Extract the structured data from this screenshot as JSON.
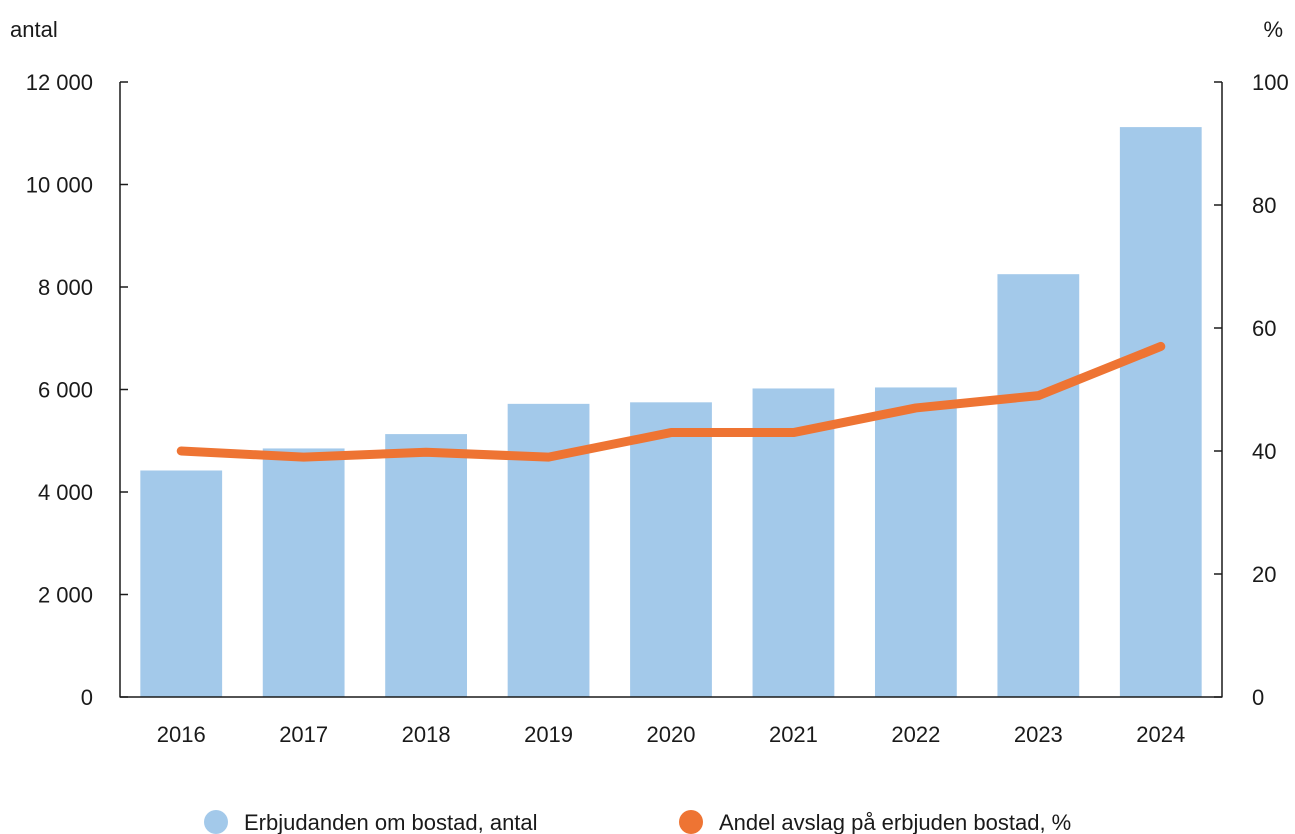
{
  "chart_data": {
    "type": "bar+line",
    "categories": [
      "2016",
      "2017",
      "2018",
      "2019",
      "2020",
      "2021",
      "2022",
      "2023",
      "2024"
    ],
    "series": [
      {
        "name": "Erbjudanden om bostad, antal",
        "type": "bar",
        "axis": "left",
        "color": "#a3c9ea",
        "values": [
          4420,
          4850,
          5130,
          5720,
          5750,
          6020,
          6040,
          8250,
          11120
        ]
      },
      {
        "name": "Andel avslag på erbjuden bostad, %",
        "type": "line",
        "axis": "right",
        "color": "#ee7433",
        "values": [
          40,
          39,
          39.8,
          39,
          43,
          43,
          47,
          49,
          57
        ]
      }
    ],
    "y_left": {
      "unit_label": "antal",
      "range": [
        0,
        12000
      ],
      "ticks": [
        0,
        2000,
        4000,
        6000,
        8000,
        10000,
        12000
      ],
      "tick_labels": [
        "0",
        "2 000",
        "4 000",
        "6 000",
        "8 000",
        "10 000",
        "12 000"
      ]
    },
    "y_right": {
      "unit_label": "%",
      "range": [
        0,
        100
      ],
      "ticks": [
        0,
        20,
        40,
        60,
        80,
        100
      ],
      "tick_labels": [
        "0",
        "20",
        "40",
        "60",
        "80",
        "100"
      ]
    },
    "grid": false,
    "legend_position": "bottom"
  }
}
